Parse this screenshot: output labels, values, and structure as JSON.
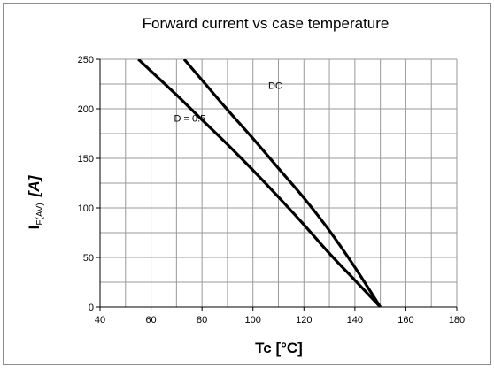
{
  "chart_data": {
    "type": "line",
    "title": "Forward current vs case temperature",
    "xlabel": "Tc [°C]",
    "ylabel_main": "I",
    "ylabel_sub": "F(AV)",
    "ylabel_unit": "[A]",
    "xlim": [
      40,
      180
    ],
    "ylim": [
      0,
      250
    ],
    "x_minor_step": 10,
    "y_minor_step": 25,
    "x_ticks": [
      40,
      60,
      80,
      100,
      120,
      140,
      160,
      180
    ],
    "y_ticks": [
      0,
      50,
      100,
      150,
      200,
      250
    ],
    "grid": true,
    "series": [
      {
        "name": "DC",
        "x": [
          73,
          80,
          90,
          100,
          110,
          120,
          130,
          140,
          150
        ],
        "y": [
          250,
          229,
          199,
          170,
          140,
          110,
          77,
          40,
          0
        ]
      },
      {
        "name": "D = 0.5",
        "x": [
          55,
          60,
          70,
          80,
          90,
          100,
          110,
          120,
          130,
          140,
          150
        ],
        "y": [
          250,
          238,
          214,
          189,
          164,
          138,
          111,
          83,
          54,
          27,
          0
        ]
      }
    ],
    "annotations": [
      {
        "text": "DC",
        "x": 106,
        "y": 220
      },
      {
        "text": "D = 0.5",
        "x": 69,
        "y": 187
      }
    ]
  }
}
